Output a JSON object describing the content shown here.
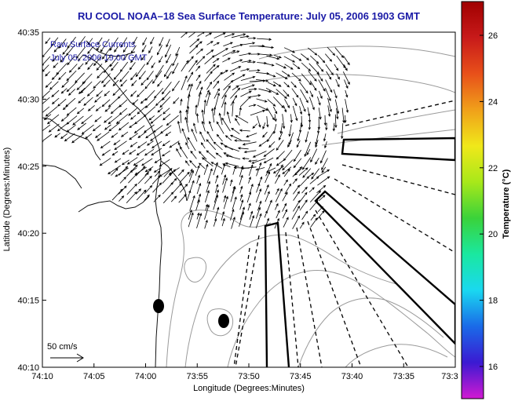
{
  "title": "RU COOL  NOAA–18  Sea Surface Temperature:  July 05, 2006 1903 GMT",
  "legend": {
    "line1": "Raw Surface Currents",
    "line2": "July 05, 2006 19:00 GMT"
  },
  "scale_label": "50 cm/s",
  "x_axis": {
    "label": "Longitude (Degrees:Minutes)",
    "ticks": [
      "74:10",
      "74:05",
      "74:00",
      "73:55",
      "73:50",
      "73:45",
      "73:40",
      "73:35",
      "73:3"
    ]
  },
  "y_axis": {
    "label": "Latitude (Degrees:Minutes)",
    "ticks": [
      "40:35",
      "40:30",
      "40:25",
      "40:20",
      "40:15",
      "40:10"
    ]
  },
  "colorbar": {
    "label": "Temperature (°C)",
    "ticks": [
      "26",
      "24",
      "22",
      "20",
      "18",
      "16"
    ],
    "colors": [
      "#d21ad2",
      "#3b1ad2",
      "#1a6ae8",
      "#1ad8f0",
      "#1ae8a0",
      "#3ad23a",
      "#a8e81a",
      "#f0e81a",
      "#f0a01a",
      "#e8501a",
      "#c81a1a",
      "#a00000"
    ]
  },
  "markers": [
    "station-marker-a",
    "station-marker-b"
  ]
}
